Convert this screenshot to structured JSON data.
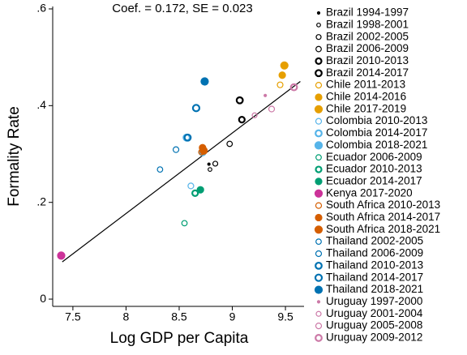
{
  "chart_data": {
    "type": "scatter",
    "annotation": "Coef. =  0.172, SE =  0.023",
    "x_label": "Log GDP per Capita",
    "y_label": "Formality Rate",
    "xlim": [
      7.31,
      9.675
    ],
    "ylim": [
      -0.015,
      0.605
    ],
    "xticks": [
      7.5,
      8,
      8.5,
      9,
      9.5
    ],
    "yticks": [
      0,
      {
        "value": 0.2,
        "label": ".2"
      },
      {
        "value": 0.4,
        "label": ".4"
      },
      {
        "value": 0.6,
        "label": ".6"
      }
    ],
    "fit_line": {
      "x": [
        7.4,
        9.64
      ],
      "y": [
        0.077,
        0.45
      ],
      "color": "#000000"
    },
    "series": [
      {
        "name": "Brazil 1994-1997",
        "color": "#000000",
        "marker": "filled",
        "size": 1.5,
        "x": [
          8.78
        ],
        "values": [
          0.279
        ]
      },
      {
        "name": "Brazil 1998-2001",
        "color": "#000000",
        "marker": "hollow",
        "size": 2.3,
        "x": [
          8.79
        ],
        "values": [
          0.268
        ]
      },
      {
        "name": "Brazil 2002-2005",
        "color": "#000000",
        "marker": "hollow",
        "size": 3,
        "x": [
          8.84
        ],
        "values": [
          0.28
        ]
      },
      {
        "name": "Brazil 2006-2009",
        "color": "#000000",
        "marker": "hollow",
        "size": 3.3,
        "x": [
          8.975
        ],
        "values": [
          0.321
        ]
      },
      {
        "name": "Brazil 2010-2013",
        "color": "#000000",
        "marker": "thick",
        "size": 3.5,
        "x": [
          9.09
        ],
        "values": [
          0.371
        ]
      },
      {
        "name": "Brazil 2014-2017",
        "color": "#000000",
        "marker": "thick",
        "size": 3.8,
        "x": [
          9.07
        ],
        "values": [
          0.411
        ]
      },
      {
        "name": "Chile 2011-2013",
        "color": "#e69f00",
        "marker": "hollow",
        "size": 3.5,
        "x": [
          9.45
        ],
        "values": [
          0.443
        ]
      },
      {
        "name": "Chile 2014-2016",
        "color": "#e69f00",
        "marker": "filled",
        "size": 4,
        "x": [
          9.47
        ],
        "values": [
          0.463
        ]
      },
      {
        "name": "Chile 2017-2019",
        "color": "#e69f00",
        "marker": "filled",
        "size": 4.5,
        "x": [
          9.49
        ],
        "values": [
          0.483
        ]
      },
      {
        "name": "Colombia 2010-2013",
        "color": "#56b4e9",
        "marker": "hollow",
        "size": 3.5,
        "x": [
          8.61
        ],
        "values": [
          0.234
        ]
      },
      {
        "name": "Colombia 2014-2017",
        "color": "#56b4e9",
        "marker": "thick",
        "size": 3.8,
        "x": [
          8.57
        ],
        "values": [
          0.334
        ]
      },
      {
        "name": "Colombia 2018-2021",
        "color": "#56b4e9",
        "marker": "filled",
        "size": 4.5,
        "x": [
          8.72
        ],
        "values": [
          0.304
        ]
      },
      {
        "name": "Ecuador 2006-2009",
        "color": "#009e73",
        "marker": "hollow",
        "size": 3.3,
        "x": [
          8.55
        ],
        "values": [
          0.157
        ]
      },
      {
        "name": "Ecuador 2010-2013",
        "color": "#009e73",
        "marker": "thick",
        "size": 3.5,
        "x": [
          8.65
        ],
        "values": [
          0.219
        ]
      },
      {
        "name": "Ecuador 2014-2017",
        "color": "#009e73",
        "marker": "filled",
        "size": 4,
        "x": [
          8.7
        ],
        "values": [
          0.226
        ]
      },
      {
        "name": "Kenya 2017-2020",
        "color": "#cc3399",
        "marker": "filled",
        "size": 4.5,
        "x": [
          7.39
        ],
        "values": [
          0.09
        ]
      },
      {
        "name": "South Africa 2010-2013",
        "color": "#d55e00",
        "marker": "hollow",
        "size": 3.5,
        "x": [
          8.71
        ],
        "values": [
          0.304
        ]
      },
      {
        "name": "South Africa 2014-2017",
        "color": "#d55e00",
        "marker": "filled",
        "size": 4,
        "x": [
          8.72
        ],
        "values": [
          0.313
        ]
      },
      {
        "name": "South Africa 2018-2021",
        "color": "#d55e00",
        "marker": "filled",
        "size": 4.5,
        "x": [
          8.73
        ],
        "values": [
          0.307
        ]
      },
      {
        "name": "Thailand 2002-2005",
        "color": "#0072b2",
        "marker": "hollow",
        "size": 3.3,
        "x": [
          8.32
        ],
        "values": [
          0.268
        ]
      },
      {
        "name": "Thailand 2006-2009",
        "color": "#0072b2",
        "marker": "hollow",
        "size": 3.5,
        "x": [
          8.47
        ],
        "values": [
          0.309
        ]
      },
      {
        "name": "Thailand 2010-2013",
        "color": "#0072b2",
        "marker": "thick",
        "size": 3.8,
        "x": [
          8.58
        ],
        "values": [
          0.334
        ]
      },
      {
        "name": "Thailand 2014-2017",
        "color": "#0072b2",
        "marker": "thick",
        "size": 4,
        "x": [
          8.66
        ],
        "values": [
          0.395
        ]
      },
      {
        "name": "Thailand 2018-2021",
        "color": "#0072b2",
        "marker": "filled",
        "size": 4.5,
        "x": [
          8.74
        ],
        "values": [
          0.45
        ]
      },
      {
        "name": "Uruguay 1997-2000",
        "color": "#cc79a7",
        "marker": "filled",
        "size": 1.5,
        "x": [
          9.31
        ],
        "values": [
          0.421
        ]
      },
      {
        "name": "Uruguay 2001-2004",
        "color": "#cc79a7",
        "marker": "hollow",
        "size": 3,
        "x": [
          9.21
        ],
        "values": [
          0.38
        ]
      },
      {
        "name": "Uruguay 2005-2008",
        "color": "#cc79a7",
        "marker": "hollow",
        "size": 3.5,
        "x": [
          9.37
        ],
        "values": [
          0.393
        ]
      },
      {
        "name": "Uruguay 2009-2012",
        "color": "#cc79a7",
        "marker": "thick",
        "size": 3.8,
        "x": [
          9.58
        ],
        "values": [
          0.438
        ]
      }
    ]
  }
}
